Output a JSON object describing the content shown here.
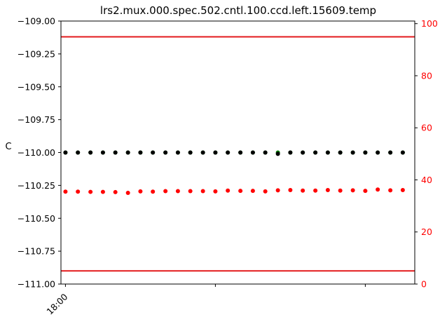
{
  "chart_data": {
    "type": "scatter",
    "title": "lrs2.mux.000.spec.502.cntl.100.ccd.left.15609.temp",
    "xlabel": "",
    "ylabel": "C",
    "ylim": [
      -111.0,
      -109.0
    ],
    "yticks": [
      -109.0,
      -109.25,
      -109.5,
      -109.75,
      -110.0,
      -110.25,
      -110.5,
      -110.75,
      -111.0
    ],
    "ytick_labels": [
      "−109.00",
      "−109.25",
      "−109.50",
      "−109.75",
      "−110.00",
      "−110.25",
      "−110.50",
      "−110.75",
      "−111.00"
    ],
    "y2lim": [
      0,
      101
    ],
    "y2ticks": [
      0,
      20,
      40,
      60,
      80,
      100
    ],
    "y2tick_labels": [
      "0",
      "20",
      "40",
      "60",
      "80",
      "100"
    ],
    "x_hours": [
      18.0,
      18.083,
      18.167,
      18.25,
      18.333,
      18.417,
      18.5,
      18.583,
      18.667,
      18.75,
      18.833,
      18.917,
      19.0,
      19.083,
      19.167,
      19.25,
      19.333,
      19.417,
      19.5,
      19.583,
      19.667,
      19.75,
      19.833,
      19.917,
      20.0,
      20.083,
      20.167,
      20.25
    ],
    "xlim_hours": [
      17.97,
      20.33
    ],
    "xticks_hours": [
      18.0,
      19.0,
      20.0
    ],
    "xtick_labels": [
      "18:00",
      "",
      ""
    ],
    "series": [
      {
        "color": "#008000",
        "axis": "left",
        "values": [
          -110.0,
          -110.0,
          -110.0,
          -110.0,
          -110.0,
          -110.0,
          -110.0,
          -110.0,
          -110.0,
          -110.0,
          -110.0,
          -110.0,
          -110.0,
          -110.0,
          -110.0,
          -110.0,
          -110.0,
          -110.0,
          -110.0,
          -110.0,
          -110.0,
          -110.0,
          -110.0,
          -110.0,
          -110.0,
          -110.0,
          -110.0,
          -110.0
        ]
      },
      {
        "color": "#000000",
        "axis": "left",
        "values": [
          -110.0,
          -110.0,
          -110.0,
          -110.0,
          -110.0,
          -110.0,
          -110.0,
          -110.0,
          -110.0,
          -110.0,
          -110.0,
          -110.0,
          -110.0,
          -110.0,
          -110.0,
          -110.0,
          -110.0,
          -110.01,
          -110.0,
          -110.0,
          -110.0,
          -110.0,
          -110.0,
          -110.0,
          -110.0,
          -110.0,
          -110.0,
          -110.0
        ]
      },
      {
        "color": "#ff0000",
        "axis": "right",
        "values": [
          35.5,
          35.5,
          35.4,
          35.4,
          35.3,
          35.0,
          35.6,
          35.5,
          35.7,
          35.7,
          35.7,
          35.7,
          35.6,
          35.9,
          35.8,
          35.8,
          35.6,
          36.0,
          36.1,
          35.9,
          35.9,
          36.1,
          35.9,
          36.0,
          35.8,
          36.3,
          36.0,
          36.1
        ]
      }
    ],
    "limit_lines": [
      {
        "axis": "left",
        "value": -109.12,
        "color": "#e31a1c"
      },
      {
        "axis": "left",
        "value": -110.9,
        "color": "#e31a1c"
      }
    ],
    "grid": false,
    "colors": {
      "right_axis": "#ff0000",
      "limit": "#e31a1c"
    }
  }
}
